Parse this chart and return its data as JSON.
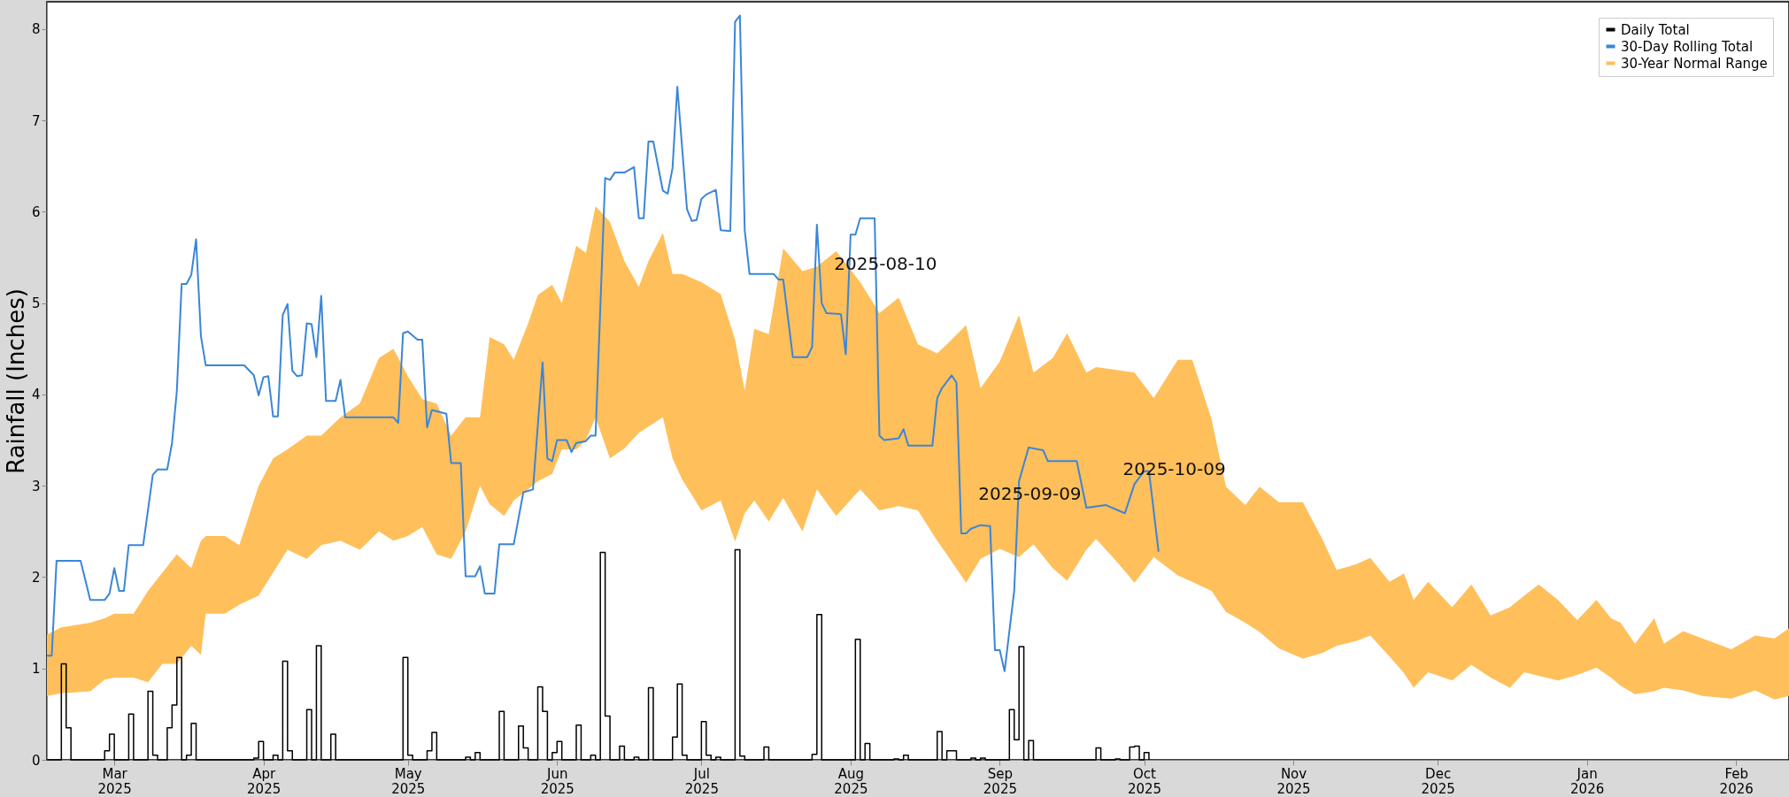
{
  "chart_data": {
    "type": "line",
    "ylabel": "Rainfall (Inches)",
    "xlim": [
      "2025-02-15",
      "2026-02-12"
    ],
    "ylim": [
      0,
      8.3
    ],
    "yticks": [
      0,
      1,
      2,
      3,
      4,
      5,
      6,
      7,
      8
    ],
    "xticks": [
      {
        "value": "2025-03-01",
        "label": "Mar 2025"
      },
      {
        "value": "2025-04-01",
        "label": "Apr 2025"
      },
      {
        "value": "2025-05-01",
        "label": "May 2025"
      },
      {
        "value": "2025-06-01",
        "label": "Jun 2025"
      },
      {
        "value": "2025-07-01",
        "label": "Jul 2025"
      },
      {
        "value": "2025-08-01",
        "label": "Aug 2025"
      },
      {
        "value": "2025-09-01",
        "label": "Sep 2025"
      },
      {
        "value": "2025-10-01",
        "label": "Oct 2025"
      },
      {
        "value": "2025-11-01",
        "label": "Nov 2025"
      },
      {
        "value": "2025-12-01",
        "label": "Dec 2025"
      },
      {
        "value": "2026-01-01",
        "label": "Jan 2026"
      },
      {
        "value": "2026-02-01",
        "label": "Feb 2026"
      }
    ],
    "grid": false,
    "legend": "top right",
    "line_style": "solid",
    "series": [
      {
        "name": "Daily Total",
        "type": "step",
        "color": "#000000",
        "x": [
          "2025-02-15",
          "2025-02-18",
          "2025-02-19",
          "2025-02-20",
          "2025-02-27",
          "2025-02-28",
          "2025-03-01",
          "2025-03-04",
          "2025-03-05",
          "2025-03-08",
          "2025-03-09",
          "2025-03-10",
          "2025-03-12",
          "2025-03-13",
          "2025-03-14",
          "2025-03-15",
          "2025-03-16",
          "2025-03-17",
          "2025-03-18",
          "2025-03-30",
          "2025-03-31",
          "2025-04-01",
          "2025-04-03",
          "2025-04-04",
          "2025-04-05",
          "2025-04-06",
          "2025-04-07",
          "2025-04-10",
          "2025-04-11",
          "2025-04-12",
          "2025-04-13",
          "2025-04-15",
          "2025-04-16",
          "2025-04-30",
          "2025-05-01",
          "2025-05-02",
          "2025-05-05",
          "2025-05-06",
          "2025-05-07",
          "2025-05-13",
          "2025-05-14",
          "2025-05-15",
          "2025-05-16",
          "2025-05-20",
          "2025-05-21",
          "2025-05-24",
          "2025-05-25",
          "2025-05-26",
          "2025-05-28",
          "2025-05-29",
          "2025-05-30",
          "2025-05-31",
          "2025-06-01",
          "2025-06-02",
          "2025-06-05",
          "2025-06-06",
          "2025-06-08",
          "2025-06-09",
          "2025-06-10",
          "2025-06-11",
          "2025-06-12",
          "2025-06-14",
          "2025-06-15",
          "2025-06-17",
          "2025-06-18",
          "2025-06-20",
          "2025-06-21",
          "2025-06-25",
          "2025-06-26",
          "2025-06-27",
          "2025-06-28",
          "2025-07-01",
          "2025-07-02",
          "2025-07-03",
          "2025-07-04",
          "2025-07-05",
          "2025-07-08",
          "2025-07-09",
          "2025-07-10",
          "2025-07-14",
          "2025-07-15",
          "2025-07-24",
          "2025-07-25",
          "2025-07-26",
          "2025-08-02",
          "2025-08-03",
          "2025-08-04",
          "2025-08-05",
          "2025-08-10",
          "2025-08-11",
          "2025-08-12",
          "2025-08-13",
          "2025-08-19",
          "2025-08-20",
          "2025-08-21",
          "2025-08-22",
          "2025-08-23",
          "2025-08-26",
          "2025-08-27",
          "2025-08-28",
          "2025-08-29",
          "2025-09-03",
          "2025-09-04",
          "2025-09-05",
          "2025-09-06",
          "2025-09-07",
          "2025-09-08",
          "2025-09-21",
          "2025-09-22",
          "2025-09-25",
          "2025-09-26",
          "2025-09-28",
          "2025-09-29",
          "2025-09-30",
          "2025-10-01",
          "2025-10-02"
        ],
        "values": [
          0,
          1.05,
          0.35,
          0,
          0.1,
          0.28,
          0,
          0.5,
          0,
          0.75,
          0.05,
          0,
          0.35,
          0.6,
          1.12,
          0,
          0.05,
          0.4,
          0,
          0.02,
          0.2,
          0,
          0.05,
          0,
          1.08,
          0.1,
          0,
          0.55,
          0,
          1.25,
          0,
          0.28,
          0,
          1.12,
          0.05,
          0,
          0.1,
          0.3,
          0,
          0.03,
          0,
          0.08,
          0,
          0.53,
          0,
          0.37,
          0.13,
          0,
          0.8,
          0.53,
          0,
          0.08,
          0.2,
          0,
          0.38,
          0,
          0.05,
          0,
          2.27,
          0.48,
          0,
          0.15,
          0,
          0.03,
          0,
          0.79,
          0,
          0.25,
          0.83,
          0.05,
          0,
          0.42,
          0.05,
          0,
          0.03,
          0,
          2.3,
          0.04,
          0,
          0.14,
          0,
          0.06,
          1.59,
          0,
          1.32,
          0,
          0.18,
          0,
          0.01,
          0,
          0.05,
          0,
          0.31,
          0,
          0.1,
          0.1,
          0,
          0.02,
          0,
          0.02,
          0,
          0.55,
          0.22,
          1.24,
          0,
          0.21,
          0,
          0.13,
          0,
          0.01,
          0,
          0.14,
          0.15,
          0,
          0.08,
          0
        ]
      },
      {
        "name": "30-Day Rolling Total",
        "color": "#3a86d8",
        "x": [
          "2025-02-15",
          "2025-02-16",
          "2025-02-17",
          "2025-02-22",
          "2025-02-24",
          "2025-02-27",
          "2025-02-28",
          "2025-03-01",
          "2025-03-02",
          "2025-03-03",
          "2025-03-04",
          "2025-03-07",
          "2025-03-09",
          "2025-03-10",
          "2025-03-12",
          "2025-03-13",
          "2025-03-14",
          "2025-03-15",
          "2025-03-16",
          "2025-03-17",
          "2025-03-18",
          "2025-03-19",
          "2025-03-20",
          "2025-03-28",
          "2025-03-30",
          "2025-03-31",
          "2025-04-01",
          "2025-04-02",
          "2025-04-03",
          "2025-04-04",
          "2025-04-05",
          "2025-04-06",
          "2025-04-07",
          "2025-04-08",
          "2025-04-09",
          "2025-04-10",
          "2025-04-11",
          "2025-04-12",
          "2025-04-13",
          "2025-04-14",
          "2025-04-16",
          "2025-04-17",
          "2025-04-18",
          "2025-04-28",
          "2025-04-29",
          "2025-04-30",
          "2025-05-01",
          "2025-05-03",
          "2025-05-04",
          "2025-05-05",
          "2025-05-06",
          "2025-05-09",
          "2025-05-10",
          "2025-05-12",
          "2025-05-13",
          "2025-05-15",
          "2025-05-16",
          "2025-05-17",
          "2025-05-19",
          "2025-05-20",
          "2025-05-23",
          "2025-05-25",
          "2025-05-27",
          "2025-05-29",
          "2025-05-30",
          "2025-05-31",
          "2025-06-01",
          "2025-06-03",
          "2025-06-04",
          "2025-06-05",
          "2025-06-07",
          "2025-06-08",
          "2025-06-09",
          "2025-06-11",
          "2025-06-12",
          "2025-06-13",
          "2025-06-15",
          "2025-06-17",
          "2025-06-18",
          "2025-06-19",
          "2025-06-20",
          "2025-06-21",
          "2025-06-23",
          "2025-06-24",
          "2025-06-25",
          "2025-06-26",
          "2025-06-28",
          "2025-06-29",
          "2025-06-30",
          "2025-07-01",
          "2025-07-02",
          "2025-07-04",
          "2025-07-05",
          "2025-07-07",
          "2025-07-08",
          "2025-07-09",
          "2025-07-10",
          "2025-07-11",
          "2025-07-16",
          "2025-07-17",
          "2025-07-18",
          "2025-07-20",
          "2025-07-23",
          "2025-07-24",
          "2025-07-25",
          "2025-07-26",
          "2025-07-27",
          "2025-07-30",
          "2025-07-31",
          "2025-08-01",
          "2025-08-02",
          "2025-08-03",
          "2025-08-06",
          "2025-08-07",
          "2025-08-08",
          "2025-08-11",
          "2025-08-12",
          "2025-08-13",
          "2025-08-18",
          "2025-08-19",
          "2025-08-20",
          "2025-08-22",
          "2025-08-23",
          "2025-08-24",
          "2025-08-25",
          "2025-08-26",
          "2025-08-28",
          "2025-08-30",
          "2025-08-31",
          "2025-09-01",
          "2025-09-02",
          "2025-09-04",
          "2025-09-05",
          "2025-09-07",
          "2025-09-10",
          "2025-09-11",
          "2025-09-17",
          "2025-09-19",
          "2025-09-23",
          "2025-09-27",
          "2025-09-29",
          "2025-10-01",
          "2025-10-02",
          "2025-10-04"
        ],
        "values": [
          1.14,
          1.14,
          2.18,
          2.18,
          1.75,
          1.75,
          1.82,
          2.1,
          1.85,
          1.85,
          2.35,
          2.35,
          3.12,
          3.18,
          3.18,
          3.47,
          4.04,
          5.21,
          5.21,
          5.31,
          5.7,
          4.64,
          4.32,
          4.32,
          4.21,
          3.99,
          4.19,
          4.2,
          3.76,
          3.76,
          4.87,
          4.99,
          4.26,
          4.2,
          4.21,
          4.78,
          4.77,
          4.41,
          5.08,
          3.93,
          3.93,
          4.16,
          3.75,
          3.75,
          3.69,
          4.67,
          4.69,
          4.6,
          4.6,
          3.64,
          3.83,
          3.79,
          3.25,
          3.25,
          2.01,
          2.01,
          2.12,
          1.82,
          1.82,
          2.36,
          2.36,
          2.93,
          2.96,
          4.35,
          3.3,
          3.27,
          3.5,
          3.5,
          3.37,
          3.47,
          3.49,
          3.55,
          3.55,
          6.37,
          6.35,
          6.43,
          6.43,
          6.49,
          5.93,
          5.93,
          6.77,
          6.77,
          6.23,
          6.2,
          6.48,
          7.37,
          6.03,
          5.9,
          5.91,
          6.14,
          6.19,
          6.24,
          5.8,
          5.79,
          8.08,
          8.15,
          5.8,
          5.32,
          5.32,
          5.26,
          5.26,
          4.41,
          4.41,
          4.52,
          5.86,
          5.0,
          4.89,
          4.88,
          4.44,
          5.75,
          5.75,
          5.93,
          5.93,
          3.55,
          3.5,
          3.52,
          3.62,
          3.44,
          3.44,
          3.96,
          4.07,
          4.21,
          4.13,
          2.48,
          2.48,
          2.53,
          2.57,
          2.56,
          1.2,
          1.2,
          0.97,
          1.85,
          3.05,
          3.42,
          3.39,
          3.27,
          3.27,
          2.76,
          2.79,
          2.7,
          3.02,
          3.16,
          3.16,
          2.28
        ]
      },
      {
        "name": "30-Year Normal Range",
        "type": "area",
        "color": "#ffbf5a",
        "x": [
          "2025-02-15",
          "2025-02-18",
          "2025-02-24",
          "2025-02-27",
          "2025-03-01",
          "2025-03-05",
          "2025-03-08",
          "2025-03-11",
          "2025-03-14",
          "2025-03-17",
          "2025-03-19",
          "2025-03-20",
          "2025-03-24",
          "2025-03-27",
          "2025-03-31",
          "2025-04-03",
          "2025-04-06",
          "2025-04-10",
          "2025-04-13",
          "2025-04-17",
          "2025-04-21",
          "2025-04-25",
          "2025-04-28",
          "2025-05-01",
          "2025-05-04",
          "2025-05-07",
          "2025-05-10",
          "2025-05-13",
          "2025-05-16",
          "2025-05-18",
          "2025-05-21",
          "2025-05-23",
          "2025-05-26",
          "2025-05-28",
          "2025-05-31",
          "2025-06-02",
          "2025-06-05",
          "2025-06-07",
          "2025-06-09",
          "2025-06-12",
          "2025-06-15",
          "2025-06-18",
          "2025-06-20",
          "2025-06-23",
          "2025-06-25",
          "2025-06-27",
          "2025-07-01",
          "2025-07-05",
          "2025-07-08",
          "2025-07-10",
          "2025-07-12",
          "2025-07-15",
          "2025-07-18",
          "2025-07-22",
          "2025-07-25",
          "2025-07-29",
          "2025-08-03",
          "2025-08-07",
          "2025-08-11",
          "2025-08-15",
          "2025-08-19",
          "2025-08-21",
          "2025-08-25",
          "2025-08-28",
          "2025-09-01",
          "2025-09-05",
          "2025-09-08",
          "2025-09-12",
          "2025-09-15",
          "2025-09-19",
          "2025-09-21",
          "2025-09-25",
          "2025-09-29",
          "2025-10-03",
          "2025-10-08",
          "2025-10-11",
          "2025-10-15",
          "2025-10-18",
          "2025-10-22",
          "2025-10-25",
          "2025-10-29",
          "2025-11-03",
          "2025-11-07",
          "2025-11-10",
          "2025-11-14",
          "2025-11-17",
          "2025-11-21",
          "2025-11-24",
          "2025-11-26",
          "2025-11-29",
          "2025-12-04",
          "2025-12-08",
          "2025-12-12",
          "2025-12-16",
          "2025-12-19",
          "2025-12-22",
          "2025-12-26",
          "2025-12-30",
          "2026-01-03",
          "2026-01-06",
          "2026-01-08",
          "2026-01-11",
          "2026-01-15",
          "2026-01-17",
          "2026-01-21",
          "2026-01-25",
          "2026-01-31",
          "2026-02-05",
          "2026-02-09",
          "2026-02-12"
        ],
        "values": [
          null,
          null,
          null,
          null,
          null,
          null,
          null,
          null,
          null,
          null,
          null,
          null,
          null,
          null,
          null,
          null,
          null,
          null,
          null,
          null,
          null,
          null,
          null,
          null,
          null,
          null,
          null,
          null,
          null,
          null,
          null,
          null,
          null,
          null,
          null,
          null,
          null,
          null,
          null,
          null,
          null,
          null,
          null,
          null,
          null,
          null,
          null,
          null,
          null,
          null,
          null,
          null,
          null,
          null,
          null,
          null,
          null,
          null,
          null,
          null,
          null,
          null,
          null,
          null,
          null,
          null,
          null,
          null,
          null,
          null,
          null,
          null,
          null,
          null,
          null,
          null,
          null,
          null,
          null,
          null,
          null,
          null,
          null,
          null,
          null,
          null,
          null,
          null,
          null,
          null,
          null,
          null,
          null,
          null,
          null,
          null,
          null,
          null,
          null,
          null,
          null,
          null,
          null,
          null,
          null,
          null,
          null,
          null,
          null,
          null
        ],
        "upper": [
          1.37,
          1.45,
          1.5,
          1.55,
          1.6,
          1.6,
          1.85,
          2.05,
          2.25,
          2.1,
          2.4,
          2.45,
          2.45,
          2.35,
          3.0,
          3.3,
          3.4,
          3.55,
          3.55,
          3.75,
          3.9,
          4.4,
          4.5,
          4.2,
          3.95,
          3.9,
          3.55,
          3.75,
          3.75,
          4.63,
          4.55,
          4.38,
          4.78,
          5.09,
          5.2,
          5.0,
          5.63,
          5.55,
          6.06,
          5.89,
          5.46,
          5.18,
          5.46,
          5.77,
          5.32,
          5.32,
          5.23,
          5.1,
          4.6,
          4.04,
          4.72,
          4.66,
          5.6,
          5.35,
          5.4,
          5.57,
          5.23,
          4.89,
          5.06,
          4.55,
          4.45,
          4.55,
          4.76,
          4.07,
          4.36,
          4.87,
          4.24,
          4.4,
          4.67,
          4.24,
          4.3,
          4.27,
          4.24,
          3.96,
          4.38,
          4.38,
          3.73,
          2.99,
          2.79,
          2.99,
          2.82,
          2.82,
          2.42,
          2.08,
          2.14,
          2.21,
          1.95,
          2.04,
          1.75,
          1.95,
          1.67,
          1.92,
          1.58,
          1.67,
          1.8,
          1.92,
          1.75,
          1.53,
          1.75,
          1.55,
          1.5,
          1.27,
          1.55,
          1.27,
          1.41,
          1.33,
          1.21,
          1.36,
          1.33,
          1.44
        ],
        "lower": [
          0.7,
          0.73,
          0.75,
          0.88,
          0.9,
          0.9,
          0.85,
          1.05,
          1.05,
          1.25,
          1.15,
          1.6,
          1.6,
          1.7,
          1.8,
          2.05,
          2.3,
          2.2,
          2.35,
          2.4,
          2.3,
          2.5,
          2.4,
          2.45,
          2.55,
          2.25,
          2.2,
          2.5,
          3.0,
          2.8,
          2.67,
          2.84,
          2.96,
          3.05,
          3.13,
          3.4,
          3.4,
          3.5,
          3.75,
          3.3,
          3.41,
          3.58,
          3.65,
          3.75,
          3.3,
          3.07,
          2.73,
          2.84,
          2.39,
          2.7,
          2.84,
          2.61,
          2.87,
          2.5,
          2.96,
          2.67,
          2.96,
          2.73,
          2.78,
          2.73,
          2.4,
          2.25,
          1.94,
          2.2,
          2.31,
          2.22,
          2.36,
          2.1,
          1.96,
          2.3,
          2.42,
          2.19,
          1.94,
          2.22,
          2.02,
          1.95,
          1.85,
          1.62,
          1.5,
          1.4,
          1.22,
          1.11,
          1.17,
          1.25,
          1.3,
          1.36,
          1.13,
          0.95,
          0.79,
          0.96,
          0.87,
          1.04,
          0.9,
          0.79,
          0.96,
          0.92,
          0.87,
          0.93,
          1.01,
          0.9,
          0.81,
          0.72,
          0.75,
          0.79,
          0.76,
          0.7,
          0.67,
          0.76,
          0.66,
          0.7
        ]
      }
    ],
    "annotations": [
      {
        "text": "2025-08-10",
        "x": "2025-07-26",
        "y": 5.0
      },
      {
        "text": "2025-09-09",
        "x": "2025-08-25",
        "y": 2.48
      },
      {
        "text": "2025-10-09",
        "x": "2025-09-24",
        "y": 2.75
      }
    ]
  }
}
